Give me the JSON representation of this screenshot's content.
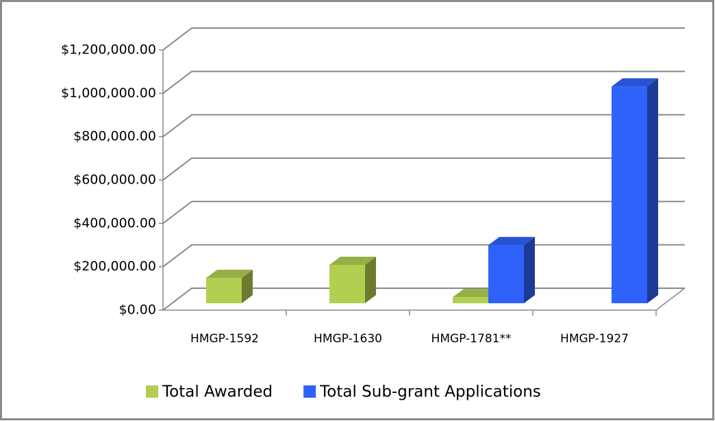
{
  "chart_data": {
    "type": "bar3d",
    "categories": [
      "HMGP-1592",
      "HMGP-1630",
      "HMGP-1781**",
      "HMGP-1927"
    ],
    "series": [
      {
        "name": "Total Awarded",
        "color": "#b2cf52",
        "values": [
          117000,
          177000,
          28000,
          0
        ]
      },
      {
        "name": "Total Sub-grant Applications",
        "color": "#2f62fa",
        "values": [
          0,
          0,
          268000,
          1000000
        ]
      }
    ],
    "ylim": [
      0,
      1200000
    ],
    "yticks": [
      {
        "value": 0,
        "label": "$0.00"
      },
      {
        "value": 200000,
        "label": "$200,000.00"
      },
      {
        "value": 400000,
        "label": "$400,000.00"
      },
      {
        "value": 600000,
        "label": "$600,000.00"
      },
      {
        "value": 800000,
        "label": "$800,000.00"
      },
      {
        "value": 1000000,
        "label": "$1,000,000.00"
      },
      {
        "value": 1200000,
        "label": "$1,200,000.00"
      }
    ],
    "grid": true,
    "legend": "bottom"
  }
}
